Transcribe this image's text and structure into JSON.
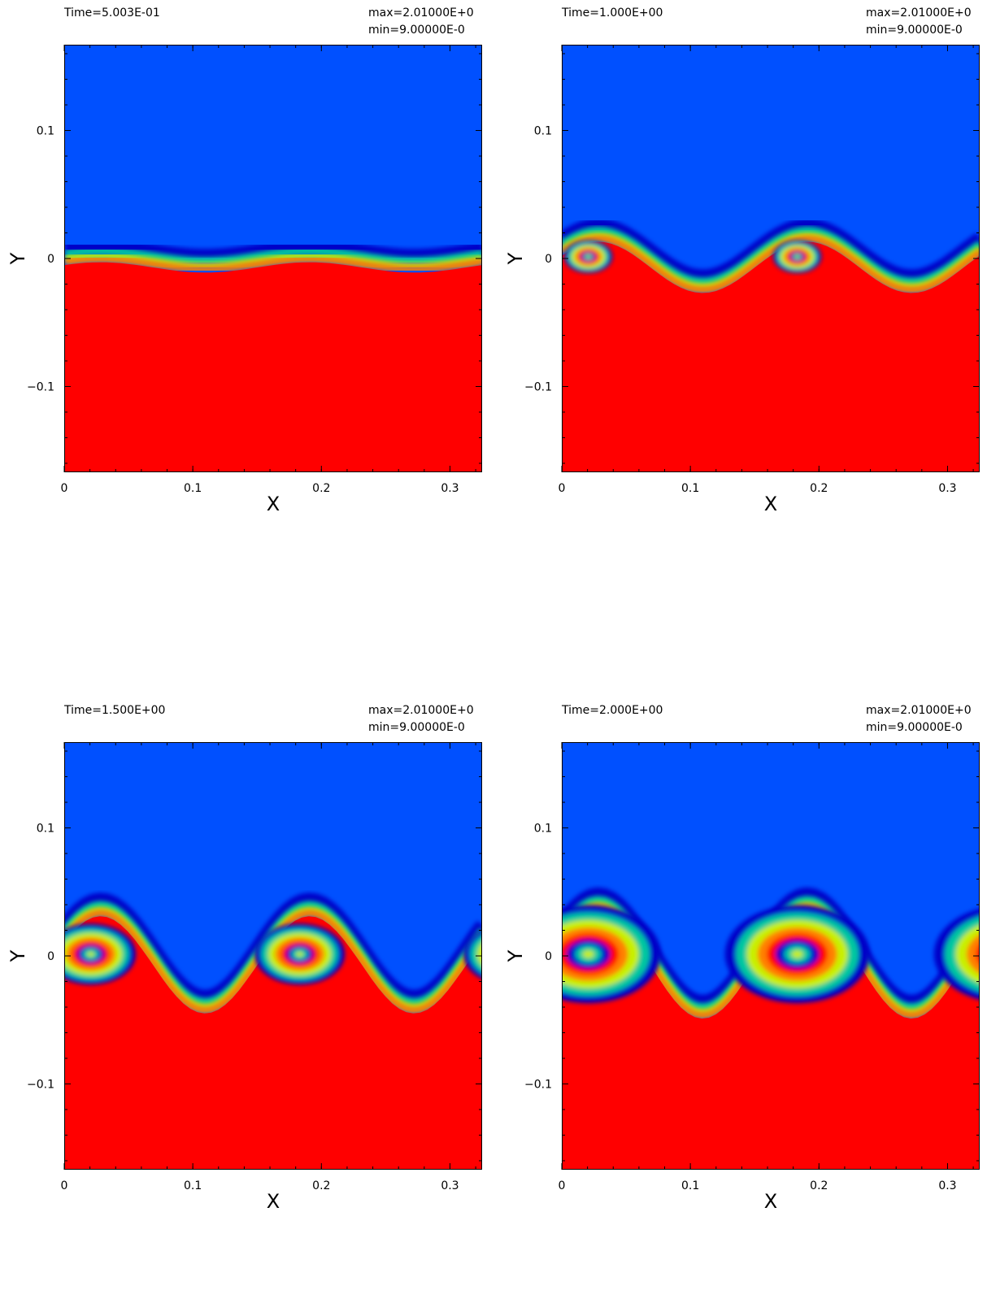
{
  "chart_data": [
    {
      "type": "heatmap",
      "time_label": "Time=5.003E-01",
      "max_label": "max=2.01000E+0",
      "min_label": "min=9.00000E-0",
      "xlabel": "X",
      "ylabel": "Y",
      "xlim": [
        0,
        0.325
      ],
      "ylim": [
        -0.167,
        0.167
      ],
      "xticks": [
        0,
        0.1,
        0.2,
        0.3
      ],
      "xtick_labels": [
        "0",
        "0.1",
        "0.2",
        "0.3"
      ],
      "yticks": [
        -0.1,
        0,
        0.1
      ],
      "ytick_labels": [
        "−0.1",
        "0",
        "0.1"
      ],
      "colormap": [
        "#0000c8",
        "#0050ff",
        "#00c8a0",
        "#c8f000",
        "#ff8000",
        "#ff0000"
      ],
      "interface": {
        "amplitude": 0.004,
        "vortex_radius": 0.0
      }
    },
    {
      "type": "heatmap",
      "time_label": "Time=1.000E+00",
      "max_label": "max=2.01000E+0",
      "min_label": "min=9.00000E-0",
      "xlabel": "X",
      "ylabel": "Y",
      "xlim": [
        0,
        0.325
      ],
      "ylim": [
        -0.167,
        0.167
      ],
      "xticks": [
        0,
        0.1,
        0.2,
        0.3
      ],
      "xtick_labels": [
        "0",
        "0.1",
        "0.2",
        "0.3"
      ],
      "yticks": [
        -0.1,
        0,
        0.1
      ],
      "ytick_labels": [
        "−0.1",
        "0",
        "0.1"
      ],
      "colormap": [
        "#0000c8",
        "#0050ff",
        "#00c8a0",
        "#c8f000",
        "#ff8000",
        "#ff0000"
      ],
      "interface": {
        "amplitude": 0.02,
        "vortex_radius": 0.015
      }
    },
    {
      "type": "heatmap",
      "time_label": "Time=1.500E+00",
      "max_label": "max=2.01000E+0",
      "min_label": "min=9.00000E-0",
      "xlabel": "X",
      "ylabel": "Y",
      "xlim": [
        0,
        0.325
      ],
      "ylim": [
        -0.167,
        0.167
      ],
      "xticks": [
        0,
        0.1,
        0.2,
        0.3
      ],
      "xtick_labels": [
        "0",
        "0.1",
        "0.2",
        "0.3"
      ],
      "yticks": [
        -0.1,
        0,
        0.1
      ],
      "ytick_labels": [
        "−0.1",
        "0",
        "0.1"
      ],
      "colormap": [
        "#0000c8",
        "#0050ff",
        "#00c8a0",
        "#c8f000",
        "#ff8000",
        "#ff0000"
      ],
      "interface": {
        "amplitude": 0.038,
        "vortex_radius": 0.028
      }
    },
    {
      "type": "heatmap",
      "time_label": "Time=2.000E+00",
      "max_label": "max=2.01000E+0",
      "min_label": "min=9.00000E-0",
      "xlabel": "X",
      "ylabel": "Y",
      "xlim": [
        0,
        0.325
      ],
      "ylim": [
        -0.167,
        0.167
      ],
      "xticks": [
        0,
        0.1,
        0.2,
        0.3
      ],
      "xtick_labels": [
        "0",
        "0.1",
        "0.2",
        "0.3"
      ],
      "yticks": [
        -0.1,
        0,
        0.1
      ],
      "ytick_labels": [
        "−0.1",
        "0",
        "0.1"
      ],
      "colormap": [
        "#0000c8",
        "#0050ff",
        "#00c8a0",
        "#c8f000",
        "#ff8000",
        "#ff0000"
      ],
      "interface": {
        "amplitude": 0.042,
        "vortex_radius": 0.045
      }
    }
  ]
}
